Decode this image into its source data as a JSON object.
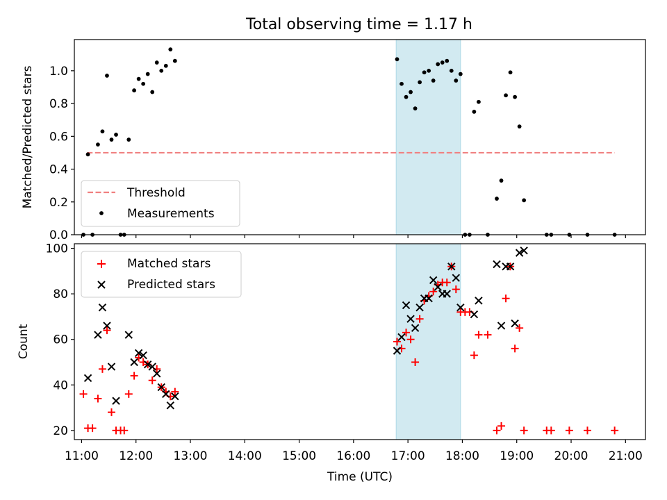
{
  "title": "Total observing time = 1.17 h",
  "x_tick_labels": [
    "11:00",
    "12:00",
    "13:00",
    "14:00",
    "15:00",
    "16:00",
    "17:00",
    "18:00",
    "19:00",
    "20:00",
    "21:00"
  ],
  "colors": {
    "threshold": "#f08080",
    "matched": "#ff0000",
    "predicted": "#000000",
    "measurement": "#000000",
    "span": "#add8e6"
  },
  "chart_data": [
    {
      "type": "scatter",
      "panel": "top",
      "ylabel": "Matched/Predicted stars",
      "xlim": [
        "10:52",
        "21:22"
      ],
      "ylim": [
        0,
        1.19
      ],
      "y_ticks": [
        0.0,
        0.2,
        0.4,
        0.6,
        0.8,
        1.0
      ],
      "x_ticks": [
        "11:00",
        "12:00",
        "13:00",
        "14:00",
        "15:00",
        "16:00",
        "17:00",
        "18:00",
        "19:00",
        "20:00",
        "21:00"
      ],
      "highlight_span": [
        "16:47",
        "17:58"
      ],
      "legend": {
        "placement": "lower-left",
        "entries": [
          "Threshold",
          "Measurements"
        ]
      },
      "threshold": {
        "name": "Threshold",
        "style": "dashed",
        "x": [
          "11:06",
          "20:48"
        ],
        "y": 0.5
      },
      "series": [
        {
          "name": "Measurements",
          "points": [
            [
              "11:02",
              0.0
            ],
            [
              "11:07",
              0.49
            ],
            [
              "11:12",
              0.0
            ],
            [
              "11:18",
              0.55
            ],
            [
              "11:23",
              0.63
            ],
            [
              "11:28",
              0.97
            ],
            [
              "11:33",
              0.58
            ],
            [
              "11:38",
              0.61
            ],
            [
              "11:43",
              0.0
            ],
            [
              "11:47",
              0.0
            ],
            [
              "11:52",
              0.58
            ],
            [
              "11:58",
              0.88
            ],
            [
              "12:03",
              0.95
            ],
            [
              "12:08",
              0.92
            ],
            [
              "12:13",
              0.98
            ],
            [
              "12:18",
              0.87
            ],
            [
              "12:23",
              1.05
            ],
            [
              "12:28",
              1.0
            ],
            [
              "12:33",
              1.03
            ],
            [
              "12:38",
              1.13
            ],
            [
              "12:43",
              1.06
            ],
            [
              "16:48",
              1.07
            ],
            [
              "16:53",
              0.92
            ],
            [
              "16:58",
              0.84
            ],
            [
              "17:03",
              0.87
            ],
            [
              "17:08",
              0.77
            ],
            [
              "17:13",
              0.93
            ],
            [
              "17:18",
              0.99
            ],
            [
              "17:23",
              1.0
            ],
            [
              "17:28",
              0.94
            ],
            [
              "17:33",
              1.04
            ],
            [
              "17:38",
              1.05
            ],
            [
              "17:43",
              1.06
            ],
            [
              "17:48",
              1.0
            ],
            [
              "17:53",
              0.94
            ],
            [
              "17:58",
              0.98
            ],
            [
              "18:03",
              0.0
            ],
            [
              "18:08",
              0.0
            ],
            [
              "18:13",
              0.75
            ],
            [
              "18:18",
              0.81
            ],
            [
              "18:28",
              0.0
            ],
            [
              "18:38",
              0.22
            ],
            [
              "18:43",
              0.33
            ],
            [
              "18:48",
              0.85
            ],
            [
              "18:53",
              0.99
            ],
            [
              "18:58",
              0.84
            ],
            [
              "19:03",
              0.66
            ],
            [
              "19:08",
              0.21
            ],
            [
              "19:33",
              0.0
            ],
            [
              "19:38",
              0.0
            ],
            [
              "19:58",
              0.0
            ],
            [
              "20:18",
              0.0
            ],
            [
              "20:48",
              0.0
            ]
          ]
        }
      ]
    },
    {
      "type": "scatter",
      "panel": "bottom",
      "xlabel": "Time (UTC)",
      "ylabel": "Count",
      "xlim": [
        "10:52",
        "21:22"
      ],
      "ylim": [
        16,
        102
      ],
      "y_ticks": [
        20,
        40,
        60,
        80,
        100
      ],
      "x_ticks": [
        "11:00",
        "12:00",
        "13:00",
        "14:00",
        "15:00",
        "16:00",
        "17:00",
        "18:00",
        "19:00",
        "20:00",
        "21:00"
      ],
      "highlight_span": [
        "16:47",
        "17:58"
      ],
      "legend": {
        "placement": "upper-left",
        "entries": [
          "Matched stars",
          "Predicted stars"
        ]
      },
      "series": [
        {
          "name": "Matched stars",
          "marker": "+",
          "points": [
            [
              "11:02",
              36
            ],
            [
              "11:07",
              21
            ],
            [
              "11:12",
              21
            ],
            [
              "11:18",
              34
            ],
            [
              "11:23",
              47
            ],
            [
              "11:28",
              64
            ],
            [
              "11:33",
              28
            ],
            [
              "11:38",
              20
            ],
            [
              "11:43",
              20
            ],
            [
              "11:47",
              20
            ],
            [
              "11:52",
              36
            ],
            [
              "11:58",
              44
            ],
            [
              "12:03",
              52
            ],
            [
              "12:08",
              50
            ],
            [
              "12:13",
              49
            ],
            [
              "12:18",
              42
            ],
            [
              "12:23",
              47
            ],
            [
              "12:28",
              39
            ],
            [
              "12:33",
              37
            ],
            [
              "12:38",
              35
            ],
            [
              "12:43",
              37
            ],
            [
              "16:48",
              59
            ],
            [
              "16:53",
              56
            ],
            [
              "16:58",
              63
            ],
            [
              "17:03",
              60
            ],
            [
              "17:08",
              50
            ],
            [
              "17:13",
              69
            ],
            [
              "17:18",
              77
            ],
            [
              "17:23",
              79
            ],
            [
              "17:28",
              81
            ],
            [
              "17:33",
              84
            ],
            [
              "17:38",
              85
            ],
            [
              "17:43",
              85
            ],
            [
              "17:48",
              92
            ],
            [
              "17:53",
              82
            ],
            [
              "17:58",
              72
            ],
            [
              "18:03",
              72
            ],
            [
              "18:08",
              72
            ],
            [
              "18:13",
              53
            ],
            [
              "18:18",
              62
            ],
            [
              "18:28",
              62
            ],
            [
              "18:38",
              20
            ],
            [
              "18:43",
              22
            ],
            [
              "18:48",
              78
            ],
            [
              "18:53",
              92
            ],
            [
              "18:58",
              56
            ],
            [
              "19:03",
              65
            ],
            [
              "19:08",
              20
            ],
            [
              "19:33",
              20
            ],
            [
              "19:38",
              20
            ],
            [
              "19:58",
              20
            ],
            [
              "20:18",
              20
            ],
            [
              "20:48",
              20
            ]
          ]
        },
        {
          "name": "Predicted stars",
          "marker": "x",
          "points": [
            [
              "11:07",
              43
            ],
            [
              "11:18",
              62
            ],
            [
              "11:23",
              74
            ],
            [
              "11:28",
              66
            ],
            [
              "11:33",
              48
            ],
            [
              "11:38",
              33
            ],
            [
              "11:52",
              62
            ],
            [
              "11:58",
              50
            ],
            [
              "12:03",
              54
            ],
            [
              "12:08",
              53
            ],
            [
              "12:13",
              49
            ],
            [
              "12:18",
              48
            ],
            [
              "12:23",
              45
            ],
            [
              "12:28",
              39
            ],
            [
              "12:33",
              36
            ],
            [
              "12:38",
              31
            ],
            [
              "12:43",
              35
            ],
            [
              "16:48",
              55
            ],
            [
              "16:53",
              61
            ],
            [
              "16:58",
              75
            ],
            [
              "17:03",
              69
            ],
            [
              "17:08",
              65
            ],
            [
              "17:13",
              74
            ],
            [
              "17:18",
              78
            ],
            [
              "17:23",
              78
            ],
            [
              "17:28",
              86
            ],
            [
              "17:33",
              83
            ],
            [
              "17:38",
              80
            ],
            [
              "17:43",
              80
            ],
            [
              "17:48",
              92
            ],
            [
              "17:53",
              87
            ],
            [
              "17:58",
              74
            ],
            [
              "18:13",
              71
            ],
            [
              "18:18",
              77
            ],
            [
              "18:38",
              93
            ],
            [
              "18:43",
              66
            ],
            [
              "18:48",
              92
            ],
            [
              "18:53",
              92
            ],
            [
              "18:58",
              67
            ],
            [
              "19:03",
              98
            ],
            [
              "19:08",
              99
            ]
          ]
        }
      ]
    }
  ]
}
